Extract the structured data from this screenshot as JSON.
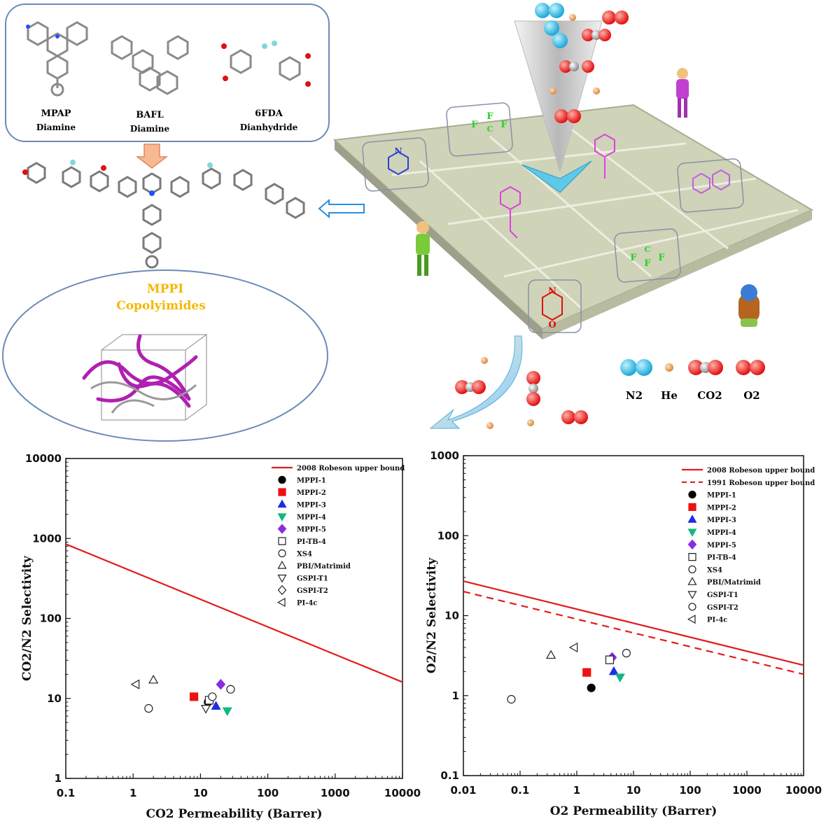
{
  "graphic": {
    "monomers": [
      {
        "name": "MPAP",
        "type": "Diamine",
        "color": "#ee1c24"
      },
      {
        "name": "BAFL",
        "type": "Diamine",
        "color": "#8a2be2"
      },
      {
        "name": "6FDA",
        "type": "Dianhydride",
        "color": "#22c55e"
      }
    ],
    "polymer_title": "MPPI",
    "polymer_subtitle": "Copolyimides",
    "gas_legend": [
      "N2",
      "He",
      "CO2",
      "O2"
    ],
    "tile_glyphs": {
      "fluorine": "F",
      "carbon": "C",
      "nitrogen": "N",
      "oxygen": "O"
    }
  },
  "chart_data": [
    {
      "type": "scatter",
      "xlabel": "CO2 Permeability (Barrer)",
      "ylabel": "CO2/N2 Selectivity",
      "xscale": "log",
      "yscale": "log",
      "xlim": [
        0.1,
        10000
      ],
      "ylim": [
        1,
        10000
      ],
      "xticks": [
        "0.1",
        "1",
        "10",
        "100",
        "1000",
        "10000"
      ],
      "yticks": [
        "1",
        "10",
        "100",
        "1000",
        "10000"
      ],
      "legend_position": "top-right",
      "lines": [
        {
          "name": "2008 Robeson upper bound",
          "style": "solid",
          "color": "#e11d1d",
          "x": [
            0.1,
            10000
          ],
          "y": [
            850,
            16
          ]
        }
      ],
      "series": [
        {
          "name": "MPPI-1",
          "marker": "circle",
          "filled": true,
          "color": "#000000",
          "points": [
            [
              13,
              9
            ]
          ]
        },
        {
          "name": "MPPI-2",
          "marker": "square",
          "filled": true,
          "color": "#ee1111",
          "points": [
            [
              8,
              10.5
            ]
          ]
        },
        {
          "name": "MPPI-3",
          "marker": "triangle-up",
          "filled": true,
          "color": "#1d2fe0",
          "points": [
            [
              17,
              8
            ]
          ]
        },
        {
          "name": "MPPI-4",
          "marker": "triangle-down",
          "filled": true,
          "color": "#10b981",
          "points": [
            [
              25,
              7
            ]
          ]
        },
        {
          "name": "MPPI-5",
          "marker": "diamond",
          "filled": true,
          "color": "#8b2be2",
          "points": [
            [
              20,
              15
            ]
          ]
        },
        {
          "name": "PI-TB-4",
          "marker": "square",
          "filled": false,
          "color": "#222222",
          "points": [
            [
              13.5,
              9.5
            ]
          ]
        },
        {
          "name": "XS4",
          "marker": "circle",
          "filled": false,
          "color": "#222222",
          "points": [
            [
              1.7,
              7.5
            ],
            [
              15,
              10.5
            ],
            [
              28,
              13
            ]
          ]
        },
        {
          "name": "PBI/Matrimid",
          "marker": "triangle-up",
          "filled": false,
          "color": "#222222",
          "points": [
            [
              2,
              17
            ]
          ]
        },
        {
          "name": "GSPI-T1",
          "marker": "triangle-down",
          "filled": false,
          "color": "#222222",
          "points": [
            [
              12,
              7.5
            ]
          ]
        },
        {
          "name": "GSPI-T2",
          "marker": "diamond",
          "filled": false,
          "color": "#222222",
          "points": []
        },
        {
          "name": "PI-4c",
          "marker": "triangle-left",
          "filled": false,
          "color": "#222222",
          "points": [
            [
              1.1,
              15
            ]
          ]
        }
      ]
    },
    {
      "type": "scatter",
      "xlabel": "O2 Permeability (Barrer)",
      "ylabel": "O2/N2 Selectivity",
      "xscale": "log",
      "yscale": "log",
      "xlim": [
        0.01,
        10000
      ],
      "ylim": [
        0.1,
        1000
      ],
      "xticks": [
        "0.01",
        "0.1",
        "1",
        "10",
        "100",
        "1000",
        "10000"
      ],
      "yticks": [
        "0.1",
        "1",
        "10",
        "100",
        "1000"
      ],
      "legend_position": "top-right",
      "lines": [
        {
          "name": "2008 Robeson upper bound",
          "style": "solid",
          "color": "#e11d1d",
          "x": [
            0.01,
            10000
          ],
          "y": [
            27,
            2.4
          ]
        },
        {
          "name": "1991 Robeson upper bound",
          "style": "dashed",
          "color": "#e11d1d",
          "x": [
            0.01,
            10000
          ],
          "y": [
            20,
            1.85
          ]
        }
      ],
      "series": [
        {
          "name": "MPPI-1",
          "marker": "circle",
          "filled": true,
          "color": "#000000",
          "points": [
            [
              1.8,
              1.25
            ]
          ]
        },
        {
          "name": "MPPI-2",
          "marker": "square",
          "filled": true,
          "color": "#ee1111",
          "points": [
            [
              1.5,
              1.95
            ]
          ]
        },
        {
          "name": "MPPI-3",
          "marker": "triangle-up",
          "filled": true,
          "color": "#1d2fe0",
          "points": [
            [
              4.5,
              2
            ]
          ]
        },
        {
          "name": "MPPI-4",
          "marker": "triangle-down",
          "filled": true,
          "color": "#10b981",
          "points": [
            [
              5.8,
              1.7
            ]
          ]
        },
        {
          "name": "MPPI-5",
          "marker": "diamond",
          "filled": true,
          "color": "#8b2be2",
          "points": [
            [
              4.2,
              3
            ]
          ]
        },
        {
          "name": "PI-TB-4",
          "marker": "square",
          "filled": false,
          "color": "#222222",
          "points": [
            [
              3.8,
              2.8
            ]
          ]
        },
        {
          "name": "XS4",
          "marker": "circle",
          "filled": false,
          "color": "#222222",
          "points": [
            [
              0.07,
              0.9
            ]
          ]
        },
        {
          "name": "PBI/Matrimid",
          "marker": "triangle-up",
          "filled": false,
          "color": "#222222",
          "points": [
            [
              0.35,
              3.2
            ]
          ]
        },
        {
          "name": "GSPI-T1",
          "marker": "triangle-down",
          "filled": false,
          "color": "#222222",
          "points": []
        },
        {
          "name": "GSPI-T2",
          "marker": "circle",
          "filled": false,
          "color": "#222222",
          "points": [
            [
              7.5,
              3.4
            ]
          ]
        },
        {
          "name": "PI-4c",
          "marker": "triangle-left",
          "filled": false,
          "color": "#222222",
          "points": [
            [
              0.9,
              4
            ]
          ]
        }
      ]
    }
  ]
}
